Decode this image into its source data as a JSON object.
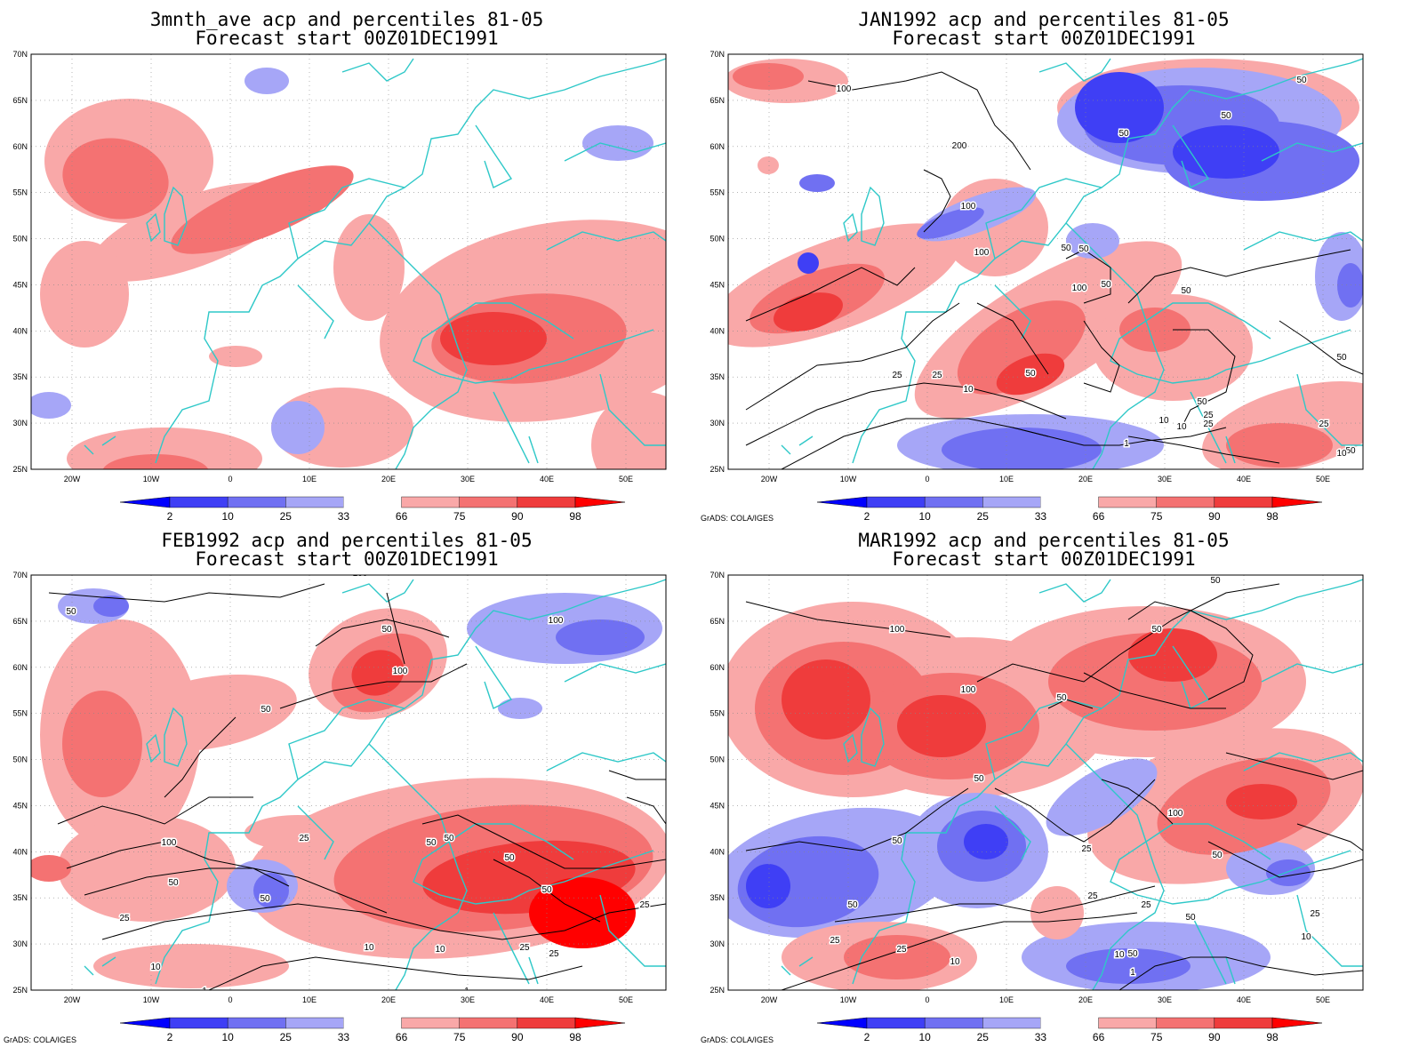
{
  "credit": "GrADS: COLA/IGES",
  "colorbar": {
    "labels": [
      "2",
      "10",
      "25",
      "33",
      "66",
      "75",
      "90",
      "98"
    ],
    "colors": [
      "#0000ff",
      "#3f3ff5",
      "#7070f2",
      "#a6a6f7",
      "#ffffff",
      "#f9a8a8",
      "#f47272",
      "#ef3c3c",
      "#ff0000"
    ]
  },
  "axes": {
    "lat_labels": [
      "70N",
      "65N",
      "60N",
      "55N",
      "50N",
      "45N",
      "40N",
      "35N",
      "30N",
      "25N"
    ],
    "lon_labels": [
      "20W",
      "10W",
      "0",
      "10E",
      "20E",
      "30E",
      "40E",
      "50E"
    ]
  },
  "colors": {
    "coast": "#2ec8c8",
    "contour": "#000000",
    "grid": "#888888"
  },
  "panels": [
    {
      "title": "3mnth_ave acp and percentiles 81-05",
      "subtitle": "Forecast start 00Z01DEC1991",
      "show_credit": false,
      "contour_labels": []
    },
    {
      "title": "JAN1992 acp and percentiles 81-05",
      "subtitle": "Forecast start 00Z01DEC1991",
      "show_credit": true,
      "contour_labels": [
        "100",
        "50",
        "200",
        "50",
        "50",
        "100",
        "50",
        "100",
        "50",
        "100",
        "50",
        "50",
        "50",
        "25",
        "10",
        "50",
        "25",
        "50",
        "25",
        "10",
        "25",
        "10",
        "1",
        "50",
        "25",
        "10"
      ]
    },
    {
      "title": "FEB1992 acp and percentiles 81-05",
      "subtitle": "Forecast start 00Z01DEC1991",
      "show_credit": true,
      "contour_labels": [
        "100",
        "50",
        "100",
        "50",
        "50",
        "100",
        "50",
        "50",
        "25",
        "100",
        "50",
        "50",
        "50",
        "50",
        "25",
        "50",
        "25",
        "10",
        "25",
        "10",
        "10",
        "1",
        "1",
        "25",
        "25"
      ]
    },
    {
      "title": "MAR1992 acp and percentiles 81-05",
      "subtitle": "Forecast start 00Z01DEC1991",
      "show_credit": true,
      "contour_labels": [
        "50",
        "100",
        "50",
        "100",
        "50",
        "50",
        "100",
        "50",
        "25",
        "50",
        "50",
        "25",
        "50",
        "25",
        "25",
        "25",
        "10",
        "10",
        "1",
        "50",
        "10",
        "25"
      ]
    }
  ]
}
